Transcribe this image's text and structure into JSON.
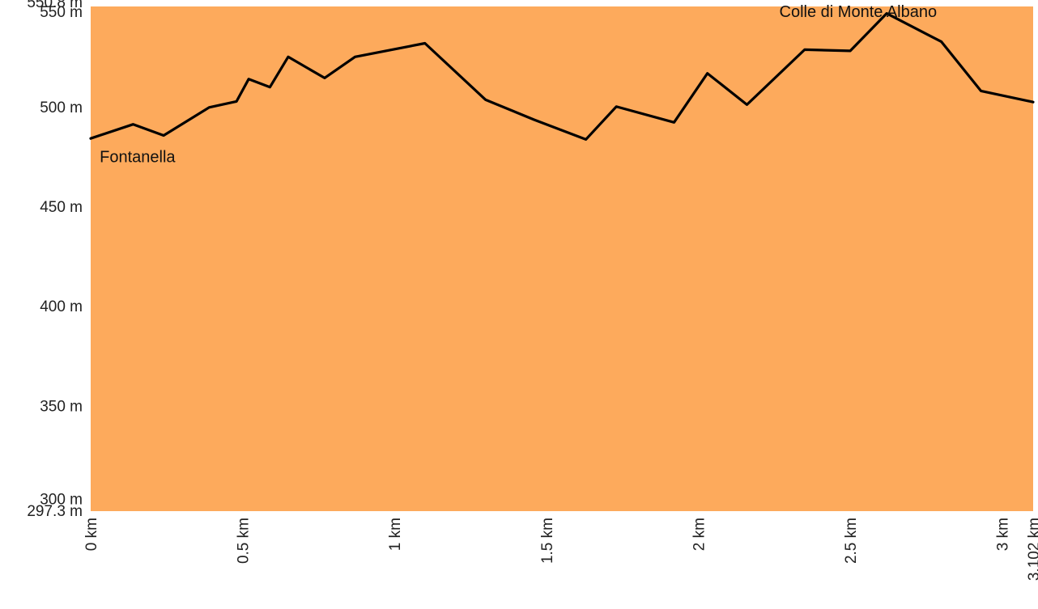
{
  "chart_data": {
    "type": "area",
    "title": "",
    "xlabel": "",
    "ylabel": "",
    "x_unit": "km",
    "y_unit": "m",
    "xlim": [
      0,
      3.102
    ],
    "ylim": [
      297.3,
      550.8
    ],
    "grid": false,
    "legend": "none",
    "fill_color": "#FDAA5C",
    "line_color": "#000000",
    "x_ticks": [
      {
        "value": 0,
        "label": "0 km"
      },
      {
        "value": 0.5,
        "label": "0.5 km"
      },
      {
        "value": 1,
        "label": "1 km"
      },
      {
        "value": 1.5,
        "label": "1.5 km"
      },
      {
        "value": 2,
        "label": "2 km"
      },
      {
        "value": 2.5,
        "label": "2.5 km"
      },
      {
        "value": 3,
        "label": "3 km"
      },
      {
        "value": 3.102,
        "label": "3.102 km"
      }
    ],
    "y_ticks": [
      {
        "value": 297.3,
        "label": "297.3 m"
      },
      {
        "value": 300,
        "label": "300 m"
      },
      {
        "value": 350,
        "label": "350 m"
      },
      {
        "value": 400,
        "label": "400 m"
      },
      {
        "value": 450,
        "label": "450 m"
      },
      {
        "value": 500,
        "label": "500 m"
      },
      {
        "value": 550,
        "label": "550 m"
      },
      {
        "value": 550.8,
        "label": "550.8 m"
      }
    ],
    "x": [
      0,
      0.14,
      0.24,
      0.39,
      0.48,
      0.52,
      0.59,
      0.65,
      0.77,
      0.87,
      1.1,
      1.3,
      1.46,
      1.63,
      1.73,
      1.92,
      2.03,
      2.16,
      2.35,
      2.5,
      2.62,
      2.8,
      2.93,
      3.102
    ],
    "y": [
      484.5,
      491.6,
      486,
      500.1,
      503.1,
      514.3,
      510.3,
      525.5,
      514.9,
      525.5,
      532.3,
      503.9,
      493.9,
      484,
      500.5,
      492.6,
      517.2,
      501.5,
      529.1,
      528.5,
      547.3,
      533.1,
      508.4,
      502.8
    ],
    "annotations": [
      {
        "text": "Fontanella",
        "x": 0.003,
        "y": 475
      },
      {
        "text": "Colle di Monte Albano",
        "x": 2.24,
        "y": 548
      }
    ]
  }
}
